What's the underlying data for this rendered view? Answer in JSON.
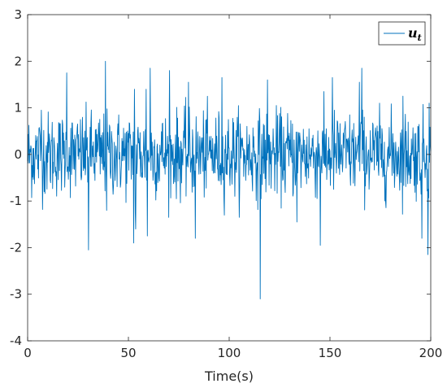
{
  "chart_data": {
    "type": "line",
    "xlabel": "Time(s)",
    "ylabel": "",
    "title": "",
    "xlim": [
      0,
      200
    ],
    "ylim": [
      -4,
      3
    ],
    "xticks": [
      0,
      50,
      100,
      150,
      200
    ],
    "yticks": [
      -4,
      -3,
      -2,
      -1,
      0,
      1,
      2,
      3
    ],
    "grid": false,
    "legend_position": "top-right",
    "legend_main": "u",
    "legend_sub": "t",
    "series": [
      {
        "name": "u_t",
        "color": "#0072BD",
        "sample_interval": 0.2,
        "noise_std": 0.45,
        "notable_points": [
          {
            "x": 6.8,
            "y": 0.95
          },
          {
            "x": 19.4,
            "y": 1.75
          },
          {
            "x": 30.2,
            "y": -2.05
          },
          {
            "x": 38.6,
            "y": 2.0
          },
          {
            "x": 39.2,
            "y": -1.2
          },
          {
            "x": 52.6,
            "y": -1.9
          },
          {
            "x": 52.9,
            "y": 1.4
          },
          {
            "x": 53.4,
            "y": -1.25
          },
          {
            "x": 53.6,
            "y": -1.6
          },
          {
            "x": 58.8,
            "y": 1.4
          },
          {
            "x": 59.4,
            "y": -1.75
          },
          {
            "x": 60.8,
            "y": 1.85
          },
          {
            "x": 70.4,
            "y": 1.8
          },
          {
            "x": 79.8,
            "y": 1.55
          },
          {
            "x": 83.2,
            "y": -1.8
          },
          {
            "x": 96.4,
            "y": 1.65
          },
          {
            "x": 115.4,
            "y": -3.1
          },
          {
            "x": 119.0,
            "y": 1.6
          },
          {
            "x": 133.6,
            "y": -1.45
          },
          {
            "x": 145.2,
            "y": -1.95
          },
          {
            "x": 151.2,
            "y": 1.65
          },
          {
            "x": 164.6,
            "y": 1.55
          },
          {
            "x": 165.8,
            "y": 1.85
          },
          {
            "x": 186.2,
            "y": 1.25
          },
          {
            "x": 195.6,
            "y": -1.8
          },
          {
            "x": 198.6,
            "y": -2.15
          },
          {
            "x": 199.2,
            "y": 1.1
          }
        ]
      }
    ]
  }
}
